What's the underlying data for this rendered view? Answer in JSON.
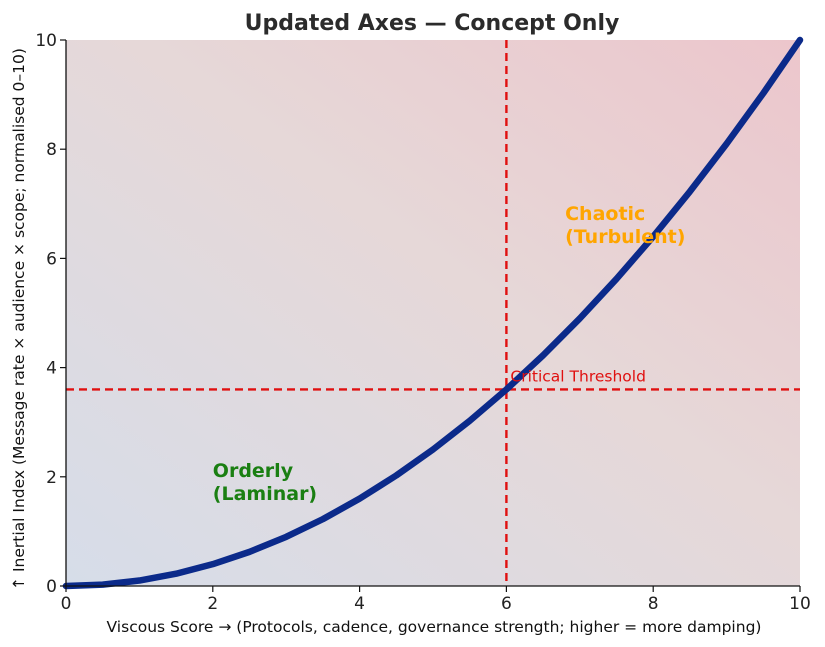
{
  "chart_data": {
    "type": "line",
    "title": "Updated Axes — Concept Only",
    "xlabel": "Viscous Score → (Protocols, cadence, governance strength; higher = more damping)",
    "ylabel": "↑ Inertial Index (Message rate × audience × scope; normalised 0–10)",
    "xlim": [
      0,
      10
    ],
    "ylim": [
      0,
      10
    ],
    "x_ticks": [
      0,
      2,
      4,
      6,
      8,
      10
    ],
    "y_ticks": [
      0,
      2,
      4,
      6,
      8,
      10
    ],
    "grid": false,
    "series": [
      {
        "x": [
          0,
          0.5,
          1,
          1.5,
          2,
          2.5,
          3,
          3.5,
          4,
          4.5,
          5,
          5.5,
          6,
          6.5,
          7,
          7.5,
          8,
          8.5,
          9,
          9.5,
          10
        ],
        "y": [
          0,
          0.025,
          0.1,
          0.225,
          0.4,
          0.625,
          0.9,
          1.225,
          1.6,
          2.025,
          2.5,
          3.025,
          3.6,
          4.225,
          4.9,
          5.625,
          6.4,
          7.225,
          8.1,
          9.025,
          10
        ],
        "color": "#0b2a8a"
      }
    ],
    "threshold": {
      "x": 6,
      "y": 3.6,
      "label": "Critical Threshold",
      "color": "#e01010"
    },
    "regions": [
      {
        "lines": [
          "Orderly",
          "(Laminar)"
        ],
        "x": 2,
        "y": 2.0,
        "color": "#1a7f12"
      },
      {
        "lines": [
          "Chaotic",
          "(Turbulent)"
        ],
        "x": 6.8,
        "y": 6.7,
        "color": "#ffa500"
      }
    ],
    "background_colors": {
      "low": "#d6dde9",
      "high": "#ecc6cc",
      "mid": "#e6d8d8"
    }
  }
}
